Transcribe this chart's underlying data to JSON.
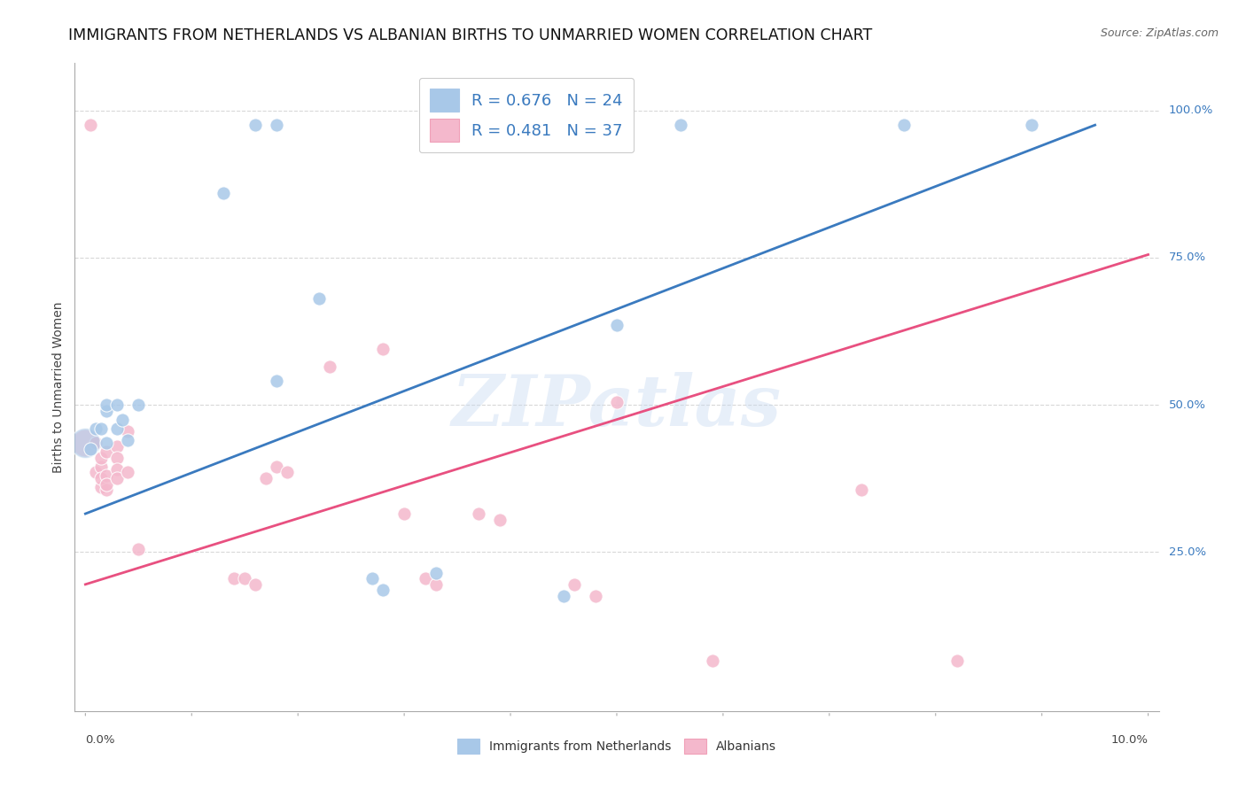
{
  "title": "IMMIGRANTS FROM NETHERLANDS VS ALBANIAN BIRTHS TO UNMARRIED WOMEN CORRELATION CHART",
  "source": "Source: ZipAtlas.com",
  "ylabel": "Births to Unmarried Women",
  "ylabel_right_ticks": [
    "100.0%",
    "75.0%",
    "50.0%",
    "25.0%"
  ],
  "ylabel_right_positions": [
    1.0,
    0.75,
    0.5,
    0.25
  ],
  "legend_blue_r": "R = 0.676",
  "legend_blue_n": "N = 24",
  "legend_pink_r": "R = 0.481",
  "legend_pink_n": "N = 37",
  "watermark": "ZIPatlas",
  "blue_color": "#a8c8e8",
  "pink_color": "#f4b8cc",
  "blue_line_color": "#3a7abf",
  "pink_line_color": "#e85080",
  "blue_scatter": [
    [
      0.0005,
      0.425
    ],
    [
      0.001,
      0.46
    ],
    [
      0.0015,
      0.46
    ],
    [
      0.002,
      0.435
    ],
    [
      0.002,
      0.49
    ],
    [
      0.002,
      0.5
    ],
    [
      0.003,
      0.46
    ],
    [
      0.003,
      0.5
    ],
    [
      0.0035,
      0.475
    ],
    [
      0.004,
      0.44
    ],
    [
      0.005,
      0.5
    ],
    [
      0.013,
      0.86
    ],
    [
      0.016,
      0.975
    ],
    [
      0.018,
      0.975
    ],
    [
      0.018,
      0.54
    ],
    [
      0.022,
      0.68
    ],
    [
      0.027,
      0.205
    ],
    [
      0.028,
      0.185
    ],
    [
      0.033,
      0.215
    ],
    [
      0.045,
      0.175
    ],
    [
      0.05,
      0.635
    ],
    [
      0.056,
      0.975
    ],
    [
      0.077,
      0.975
    ],
    [
      0.089,
      0.975
    ]
  ],
  "pink_scatter": [
    [
      0.0005,
      0.975
    ],
    [
      0.001,
      0.435
    ],
    [
      0.001,
      0.385
    ],
    [
      0.0015,
      0.395
    ],
    [
      0.0015,
      0.36
    ],
    [
      0.0015,
      0.41
    ],
    [
      0.0015,
      0.375
    ],
    [
      0.002,
      0.42
    ],
    [
      0.002,
      0.38
    ],
    [
      0.002,
      0.355
    ],
    [
      0.002,
      0.365
    ],
    [
      0.003,
      0.43
    ],
    [
      0.003,
      0.41
    ],
    [
      0.003,
      0.39
    ],
    [
      0.003,
      0.375
    ],
    [
      0.004,
      0.455
    ],
    [
      0.004,
      0.385
    ],
    [
      0.005,
      0.255
    ],
    [
      0.014,
      0.205
    ],
    [
      0.015,
      0.205
    ],
    [
      0.016,
      0.195
    ],
    [
      0.017,
      0.375
    ],
    [
      0.018,
      0.395
    ],
    [
      0.019,
      0.385
    ],
    [
      0.023,
      0.565
    ],
    [
      0.028,
      0.595
    ],
    [
      0.03,
      0.315
    ],
    [
      0.032,
      0.205
    ],
    [
      0.033,
      0.195
    ],
    [
      0.037,
      0.315
    ],
    [
      0.039,
      0.305
    ],
    [
      0.046,
      0.195
    ],
    [
      0.048,
      0.175
    ],
    [
      0.05,
      0.505
    ],
    [
      0.059,
      0.065
    ],
    [
      0.073,
      0.355
    ],
    [
      0.082,
      0.065
    ]
  ],
  "blue_trendline_x": [
    0.0,
    0.095
  ],
  "blue_trendline_y": [
    0.315,
    0.975
  ],
  "pink_trendline_x": [
    0.0,
    0.1
  ],
  "pink_trendline_y": [
    0.195,
    0.755
  ],
  "xlim": [
    -0.001,
    0.101
  ],
  "ylim": [
    -0.02,
    1.08
  ],
  "grid_color": "#d8d8d8",
  "background_color": "#ffffff",
  "title_fontsize": 12.5,
  "axis_label_fontsize": 10,
  "tick_fontsize": 9.5,
  "legend_fontsize": 13
}
